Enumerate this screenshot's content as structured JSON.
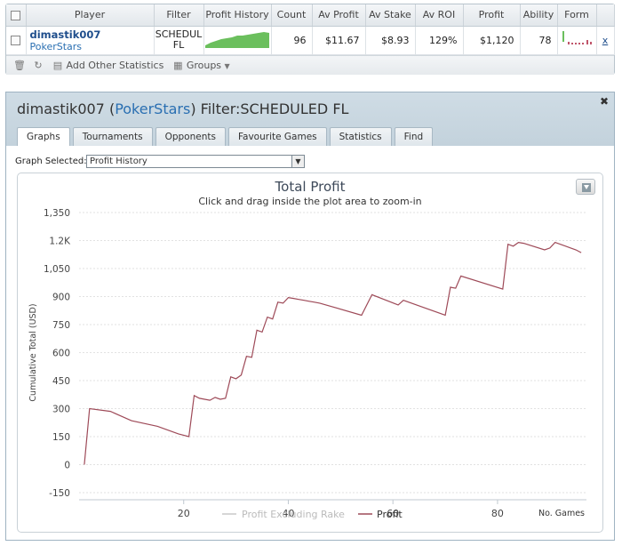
{
  "stats": {
    "columns": [
      "Player",
      "Filter",
      "Profit History",
      "Count",
      "Av Profit",
      "Av Stake",
      "Av ROI",
      "Profit",
      "Ability",
      "Form"
    ],
    "row": {
      "player": "dimastik007",
      "site": "PokerStars",
      "filter_line1": "SCHEDUL",
      "filter_line2": "FL",
      "count": "96",
      "av_profit": "$11.67",
      "av_stake": "$8.93",
      "av_roi": "129%",
      "profit": "$1,120",
      "ability": "78",
      "remove": "x"
    },
    "toolbar": {
      "add_stats": "Add Other Statistics",
      "groups": "Groups"
    }
  },
  "panel": {
    "title_player": "dimastik007",
    "title_site": "PokerStars",
    "title_filter": "Filter:SCHEDULED FL",
    "tabs": [
      "Graphs",
      "Tournaments",
      "Opponents",
      "Favourite Games",
      "Statistics",
      "Find"
    ],
    "active_tab": "Graphs",
    "graph_selected_label": "Graph Selected:",
    "graph_selected_value": "Profit History"
  },
  "colors": {
    "profit_line": "#9e4a58",
    "excl_rake_line": "#c8c8c8",
    "sparkline": "#6bbf5d"
  },
  "chart_data": {
    "type": "line",
    "title": "Total Profit",
    "subtitle": "Click and drag inside the plot area to zoom-in",
    "ylabel": "Cumulative Total (USD)",
    "xlabel": "No. Games",
    "ylim": [
      -150,
      1350
    ],
    "xlim": [
      0,
      97
    ],
    "y_ticks": [
      -150,
      0,
      150,
      300,
      450,
      600,
      750,
      900,
      "1,050",
      "1.2K",
      "1,350"
    ],
    "x_ticks": [
      20,
      40,
      60,
      80
    ],
    "legend": [
      "Profit Excluding Rake",
      "Profit"
    ],
    "series": [
      {
        "name": "Profit",
        "x": [
          1,
          2,
          6,
          10,
          15,
          19,
          21,
          22,
          23,
          25,
          26,
          27,
          28,
          29,
          30,
          31,
          32,
          33,
          34,
          35,
          36,
          37,
          38,
          39,
          40,
          41,
          42,
          43,
          44,
          45,
          46,
          54,
          56,
          61,
          62,
          70,
          71,
          72,
          73,
          81,
          82,
          83,
          84,
          85,
          89,
          90,
          91,
          94,
          95,
          96
        ],
        "y": [
          0,
          300,
          285,
          235,
          205,
          165,
          150,
          370,
          355,
          345,
          360,
          350,
          355,
          470,
          460,
          480,
          580,
          575,
          720,
          710,
          790,
          780,
          870,
          865,
          895,
          890,
          885,
          880,
          875,
          870,
          865,
          800,
          910,
          855,
          880,
          800,
          950,
          945,
          1010,
          940,
          1180,
          1170,
          1190,
          1185,
          1150,
          1160,
          1190,
          1160,
          1150,
          1135
        ]
      }
    ]
  }
}
